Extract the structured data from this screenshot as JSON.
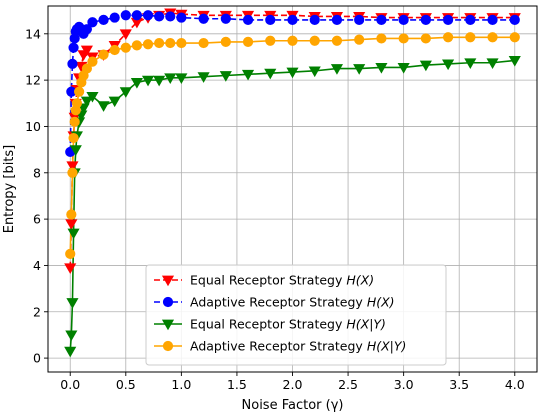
{
  "chart_data": {
    "type": "line",
    "xlabel": "Noise Factor (γ)",
    "ylabel": "Entropy [bits]",
    "xlim": [
      -0.2,
      4.2
    ],
    "ylim": [
      -0.6,
      15.2
    ],
    "xticks": [
      0.0,
      0.5,
      1.0,
      1.5,
      2.0,
      2.5,
      3.0,
      3.5,
      4.0
    ],
    "xtick_labels": [
      "0.0",
      "0.5",
      "1.0",
      "1.5",
      "2.0",
      "2.5",
      "3.0",
      "3.5",
      "4.0"
    ],
    "yticks": [
      0,
      2,
      4,
      6,
      8,
      10,
      12,
      14
    ],
    "ytick_labels": [
      "0",
      "2",
      "4",
      "6",
      "8",
      "10",
      "12",
      "14"
    ],
    "grid": true,
    "legend_position": "lower-center",
    "series": [
      {
        "name": "Equal Receptor Strategy H(X)",
        "legend_prefix": "Equal Receptor Strategy ",
        "legend_math": "H(X)",
        "color": "#ff0000",
        "marker": "triangle-down",
        "linestyle": "dashed",
        "x": [
          0.0,
          0.01,
          0.02,
          0.03,
          0.04,
          0.05,
          0.06,
          0.08,
          0.1,
          0.12,
          0.15,
          0.2,
          0.3,
          0.4,
          0.5,
          0.6,
          0.7,
          0.8,
          0.9,
          1.0,
          1.2,
          1.4,
          1.6,
          1.8,
          2.0,
          2.2,
          2.4,
          2.6,
          2.8,
          3.0,
          3.2,
          3.4,
          3.6,
          3.8,
          4.0
        ],
        "y": [
          3.9,
          5.8,
          8.3,
          9.6,
          10.4,
          11.0,
          11.6,
          12.1,
          12.6,
          13.1,
          13.3,
          13.0,
          13.1,
          13.5,
          14.0,
          14.5,
          14.7,
          14.8,
          14.9,
          14.85,
          14.8,
          14.8,
          14.8,
          14.8,
          14.8,
          14.75,
          14.75,
          14.75,
          14.7,
          14.7,
          14.7,
          14.7,
          14.7,
          14.7,
          14.7
        ]
      },
      {
        "name": "Adaptive Receptor Strategy H(X)",
        "legend_prefix": "Adaptive Receptor Strategy ",
        "legend_math": "H(X)",
        "color": "#0000ff",
        "marker": "circle",
        "linestyle": "dashed",
        "x": [
          0.0,
          0.01,
          0.02,
          0.03,
          0.04,
          0.05,
          0.06,
          0.08,
          0.1,
          0.12,
          0.15,
          0.2,
          0.3,
          0.4,
          0.5,
          0.6,
          0.7,
          0.8,
          0.9,
          1.0,
          1.2,
          1.4,
          1.6,
          1.8,
          2.0,
          2.2,
          2.4,
          2.6,
          2.8,
          3.0,
          3.2,
          3.4,
          3.6,
          3.8,
          4.0
        ],
        "y": [
          8.9,
          11.5,
          12.7,
          13.4,
          13.8,
          14.1,
          14.2,
          14.3,
          14.2,
          14.0,
          14.2,
          14.5,
          14.6,
          14.7,
          14.8,
          14.8,
          14.8,
          14.75,
          14.75,
          14.7,
          14.65,
          14.65,
          14.6,
          14.6,
          14.6,
          14.6,
          14.6,
          14.6,
          14.6,
          14.6,
          14.6,
          14.6,
          14.6,
          14.6,
          14.6
        ]
      },
      {
        "name": "Equal Receptor Strategy H(X|Y)",
        "legend_prefix": "Equal Receptor Strategy ",
        "legend_math": "H(X|Y)",
        "color": "#008000",
        "marker": "triangle-down",
        "linestyle": "solid",
        "x": [
          0.0,
          0.01,
          0.02,
          0.03,
          0.04,
          0.05,
          0.06,
          0.08,
          0.1,
          0.12,
          0.15,
          0.2,
          0.3,
          0.4,
          0.5,
          0.6,
          0.7,
          0.8,
          0.9,
          1.0,
          1.2,
          1.4,
          1.6,
          1.8,
          2.0,
          2.2,
          2.4,
          2.6,
          2.8,
          3.0,
          3.2,
          3.4,
          3.6,
          3.8,
          4.0
        ],
        "y": [
          0.3,
          1.0,
          2.4,
          5.4,
          8.0,
          9.0,
          9.6,
          10.2,
          10.5,
          10.8,
          11.1,
          11.3,
          10.9,
          11.1,
          11.5,
          11.9,
          12.0,
          12.0,
          12.1,
          12.1,
          12.15,
          12.2,
          12.25,
          12.3,
          12.35,
          12.4,
          12.5,
          12.5,
          12.55,
          12.55,
          12.65,
          12.7,
          12.75,
          12.75,
          12.85
        ]
      },
      {
        "name": "Adaptive Receptor Strategy H(X|Y)",
        "legend_prefix": "Adaptive Receptor Strategy ",
        "legend_math": "H(X|Y)",
        "color": "#ffa500",
        "marker": "circle",
        "linestyle": "solid",
        "x": [
          0.0,
          0.01,
          0.02,
          0.03,
          0.04,
          0.05,
          0.06,
          0.08,
          0.1,
          0.12,
          0.15,
          0.2,
          0.3,
          0.4,
          0.5,
          0.6,
          0.7,
          0.8,
          0.9,
          1.0,
          1.2,
          1.4,
          1.6,
          1.8,
          2.0,
          2.2,
          2.4,
          2.6,
          2.8,
          3.0,
          3.2,
          3.4,
          3.6,
          3.8,
          4.0
        ],
        "y": [
          4.5,
          6.2,
          8.0,
          9.5,
          10.2,
          10.7,
          11.0,
          11.5,
          11.9,
          12.2,
          12.5,
          12.8,
          13.1,
          13.3,
          13.4,
          13.5,
          13.55,
          13.6,
          13.6,
          13.6,
          13.6,
          13.65,
          13.65,
          13.7,
          13.7,
          13.7,
          13.7,
          13.75,
          13.8,
          13.8,
          13.8,
          13.85,
          13.85,
          13.85,
          13.85
        ]
      }
    ]
  }
}
